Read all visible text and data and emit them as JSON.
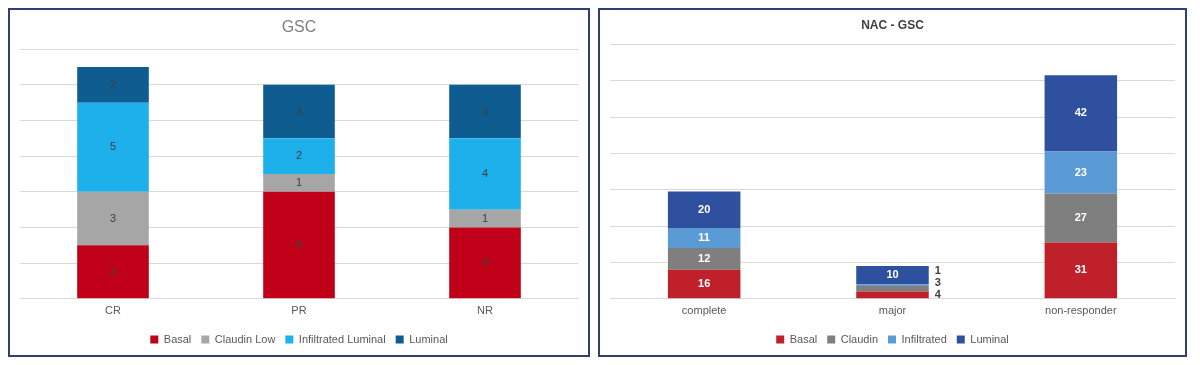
{
  "chart_data": [
    {
      "type": "bar",
      "title": "GSC",
      "stacked": true,
      "data_labels": true,
      "tick_labels": "x",
      "grid": "y",
      "legend": "bottom",
      "categories": [
        "CR",
        "PR",
        "NR"
      ],
      "series": [
        {
          "name": "Basal",
          "color": "#c00018",
          "values": [
            3,
            6,
            4
          ]
        },
        {
          "name": "Claudin Low",
          "color": "#a6a6a6",
          "values": [
            3,
            1,
            1
          ]
        },
        {
          "name": "Infiltrated Luminal",
          "color": "#1eb0ea",
          "values": [
            5,
            2,
            4
          ]
        },
        {
          "name": "Luminal",
          "color": "#0f5d90",
          "values": [
            2,
            3,
            3
          ]
        }
      ]
    },
    {
      "type": "bar",
      "title": "NAC - GSC",
      "stacked": true,
      "data_labels": true,
      "tick_labels": "x",
      "grid": "y",
      "legend": "bottom",
      "categories": [
        "complete",
        "major",
        "non-responder"
      ],
      "series": [
        {
          "name": "Basal",
          "color": "#c0202a",
          "values": [
            16,
            4,
            31
          ]
        },
        {
          "name": "Claudin",
          "color": "#7f7f7f",
          "values": [
            12,
            3,
            27
          ]
        },
        {
          "name": "Infiltrated",
          "color": "#5b9bd5",
          "values": [
            11,
            1,
            23
          ]
        },
        {
          "name": "Luminal",
          "color": "#2f4f9f",
          "values": [
            20,
            10,
            42
          ]
        }
      ]
    }
  ]
}
